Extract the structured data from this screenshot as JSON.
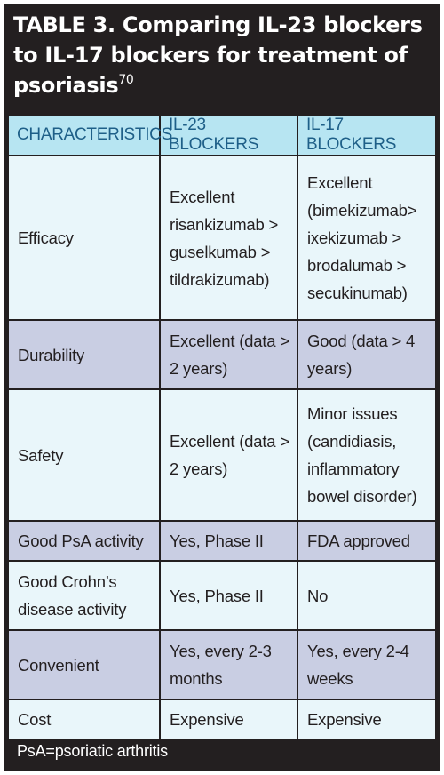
{
  "title": {
    "text": "TABLE 3. Comparing IL-23 blockers to IL-17 blockers for treatment of psoriasis",
    "reference": "70"
  },
  "table": {
    "headers": [
      "CHARACTERISTICS",
      "IL-23 BLOCKERS",
      "IL-17 BLOCKERS"
    ],
    "rows": [
      [
        "Efficacy",
        "Excellent risankizumab > guselkumab > tildrakizumab)",
        "Excellent (bimekizumab> ixekizumab > brodalumab > secukinumab)"
      ],
      [
        "Durability",
        "Excellent (data > 2 years)",
        "Good (data > 4 years)"
      ],
      [
        "Safety",
        "Excellent (data > 2 years)",
        "Minor issues (candidiasis, inflammatory bowel disorder)"
      ],
      [
        "Good PsA activity",
        "Yes, Phase II",
        "FDA approved"
      ],
      [
        "Good Crohn’s disease activity",
        "Yes, Phase II",
        "No"
      ],
      [
        "Convenient",
        "Yes, every 2-3 months",
        "Yes, every 2-4 weeks"
      ],
      [
        "Cost",
        "Expensive",
        "Expensive"
      ]
    ]
  },
  "footnote": "PsA=psoriatic arthritis",
  "colors": {
    "background": "#231f20",
    "header_fill": "#b7e5f2",
    "header_text": "#1e5f88",
    "row_light": "#e9f6fa",
    "row_dark": "#c9cee3"
  }
}
